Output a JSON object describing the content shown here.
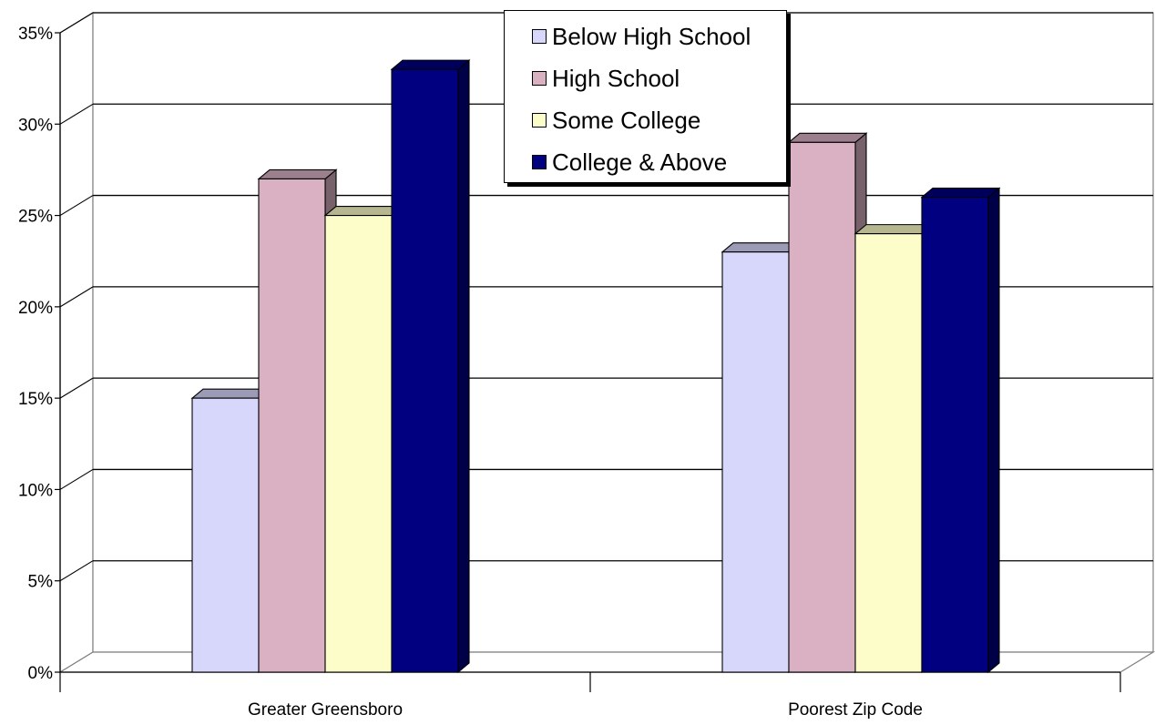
{
  "chart_data": {
    "type": "bar",
    "categories": [
      "Greater Greensboro",
      "Poorest Zip Code"
    ],
    "series": [
      {
        "name": "Below High School",
        "values": [
          15,
          23
        ],
        "color": "#d7d7fb"
      },
      {
        "name": "High School",
        "values": [
          27,
          29
        ],
        "color": "#d9b1c3"
      },
      {
        "name": "Some College",
        "values": [
          25,
          24
        ],
        "color": "#fdfdc9"
      },
      {
        "name": "College & Above",
        "values": [
          33,
          26
        ],
        "color": "#000080"
      }
    ],
    "ylim": [
      0,
      35
    ],
    "yticks": [
      "0%",
      "5%",
      "10%",
      "15%",
      "20%",
      "25%",
      "30%",
      "35%"
    ],
    "grid": true,
    "legend_position": "top-center",
    "xlabel": "",
    "ylabel": "",
    "title": ""
  }
}
